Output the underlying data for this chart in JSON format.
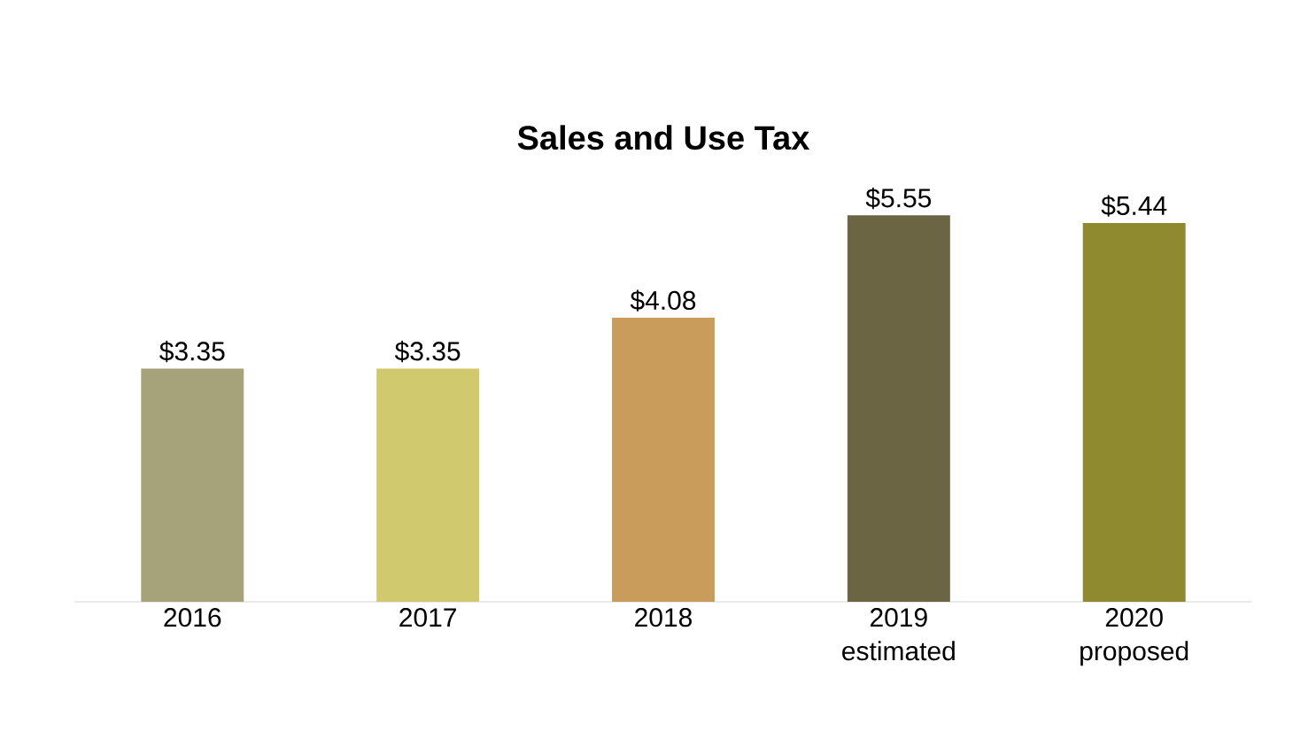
{
  "chart_data": {
    "type": "bar",
    "title": "Sales and Use Tax",
    "categories": [
      "2016",
      "2017",
      "2018",
      "2019 estimated",
      "2020 proposed"
    ],
    "values": [
      3.35,
      3.35,
      4.08,
      5.55,
      5.44
    ],
    "colors": [
      "#a6a27a",
      "#d1c96d",
      "#c99c5c",
      "#6b6543",
      "#8f8a30"
    ],
    "value_labels": [
      "$3.35",
      "$3.35",
      "$4.08",
      "$5.55",
      "$5.44"
    ]
  }
}
